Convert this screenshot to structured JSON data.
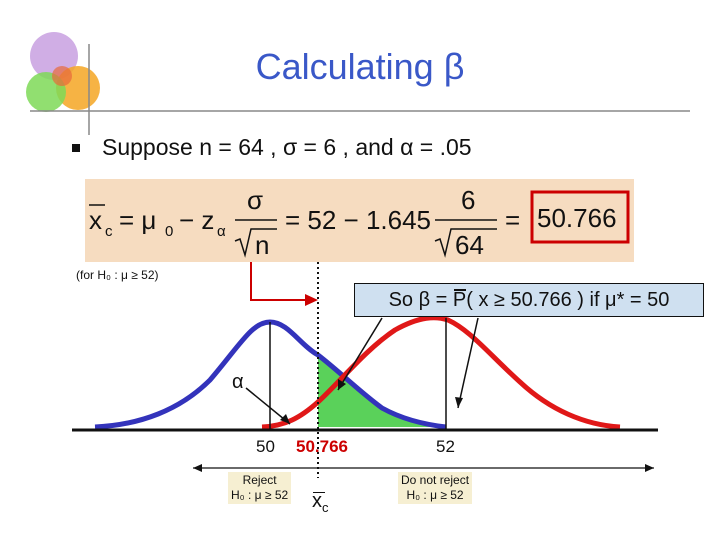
{
  "slide": {
    "title": "Calculating  β",
    "lead_text": "Suppose n = 64 , σ = 6 , and α = .05",
    "formula": {
      "lhs": "x",
      "lhs_sub": "c",
      "mu0": "= μ",
      "mu0_sub": "0",
      "minus": "− z",
      "z_sub": "α",
      "frac1_num": "σ",
      "frac1_den": "n",
      "eq2": "= 52 − 1.645",
      "frac2_num": "6",
      "frac2_den": "64",
      "eq3": "=",
      "result": "50.766"
    },
    "null_note": "(for H₀ : μ ≥ 52)",
    "callout": "So β = P( x ≥ 50.766 ) if μ* = 50",
    "alpha_label": "α",
    "axis_labels": {
      "mu_star": "50",
      "critical": "50.766",
      "mu0": "52"
    },
    "reject_label": [
      "Reject",
      "H₀ : μ ≥ 52"
    ],
    "do_not_reject_label": [
      "Do not reject",
      "H₀ : μ ≥ 52"
    ],
    "xc_label": "x",
    "xc_sub": "c"
  },
  "colors": {
    "title": "#3a58c8",
    "blue_curve": "#3333bb",
    "red_curve": "#e01818",
    "green_fill": "#5ad15a",
    "formula_bg": "#f6dcc0",
    "callout_bg": "#cfe0f0",
    "result_box": "#cc0000"
  },
  "icons": [
    "square-bullet-icon",
    "decorative-circles-logo"
  ]
}
